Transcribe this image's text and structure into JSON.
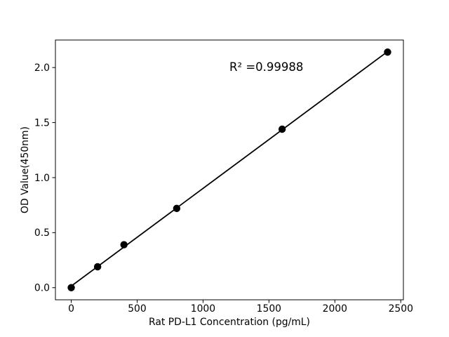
{
  "chart_data": {
    "type": "scatter",
    "title": "",
    "xlabel": "Rat PD-L1 Concentration (pg/mL)",
    "ylabel": "OD Value(450nm)",
    "annotation": {
      "text": "R² =0.99988",
      "x": 1200,
      "y": 1.97
    },
    "r_squared": 0.99988,
    "x": [
      0,
      200,
      400,
      800,
      1600,
      2400
    ],
    "y": [
      0.0,
      0.19,
      0.39,
      0.72,
      1.44,
      2.14
    ],
    "fit_line": true,
    "marker": "filled-circle",
    "x_ticks": [
      0,
      500,
      1000,
      1500,
      2000,
      2500
    ],
    "x_tick_labels": [
      "0",
      "500",
      "1000",
      "1500",
      "2000",
      "2500"
    ],
    "y_ticks": [
      0.0,
      0.5,
      1.0,
      1.5,
      2.0
    ],
    "y_tick_labels": [
      "0.0",
      "0.5",
      "1.0",
      "1.5",
      "2.0"
    ],
    "xlim": [
      -120,
      2520
    ],
    "ylim": [
      -0.11,
      2.25
    ],
    "grid": false,
    "legend": "none",
    "colors": {
      "line": "#000000",
      "marker": "#000000",
      "axis": "#000000",
      "background": "#ffffff"
    }
  }
}
